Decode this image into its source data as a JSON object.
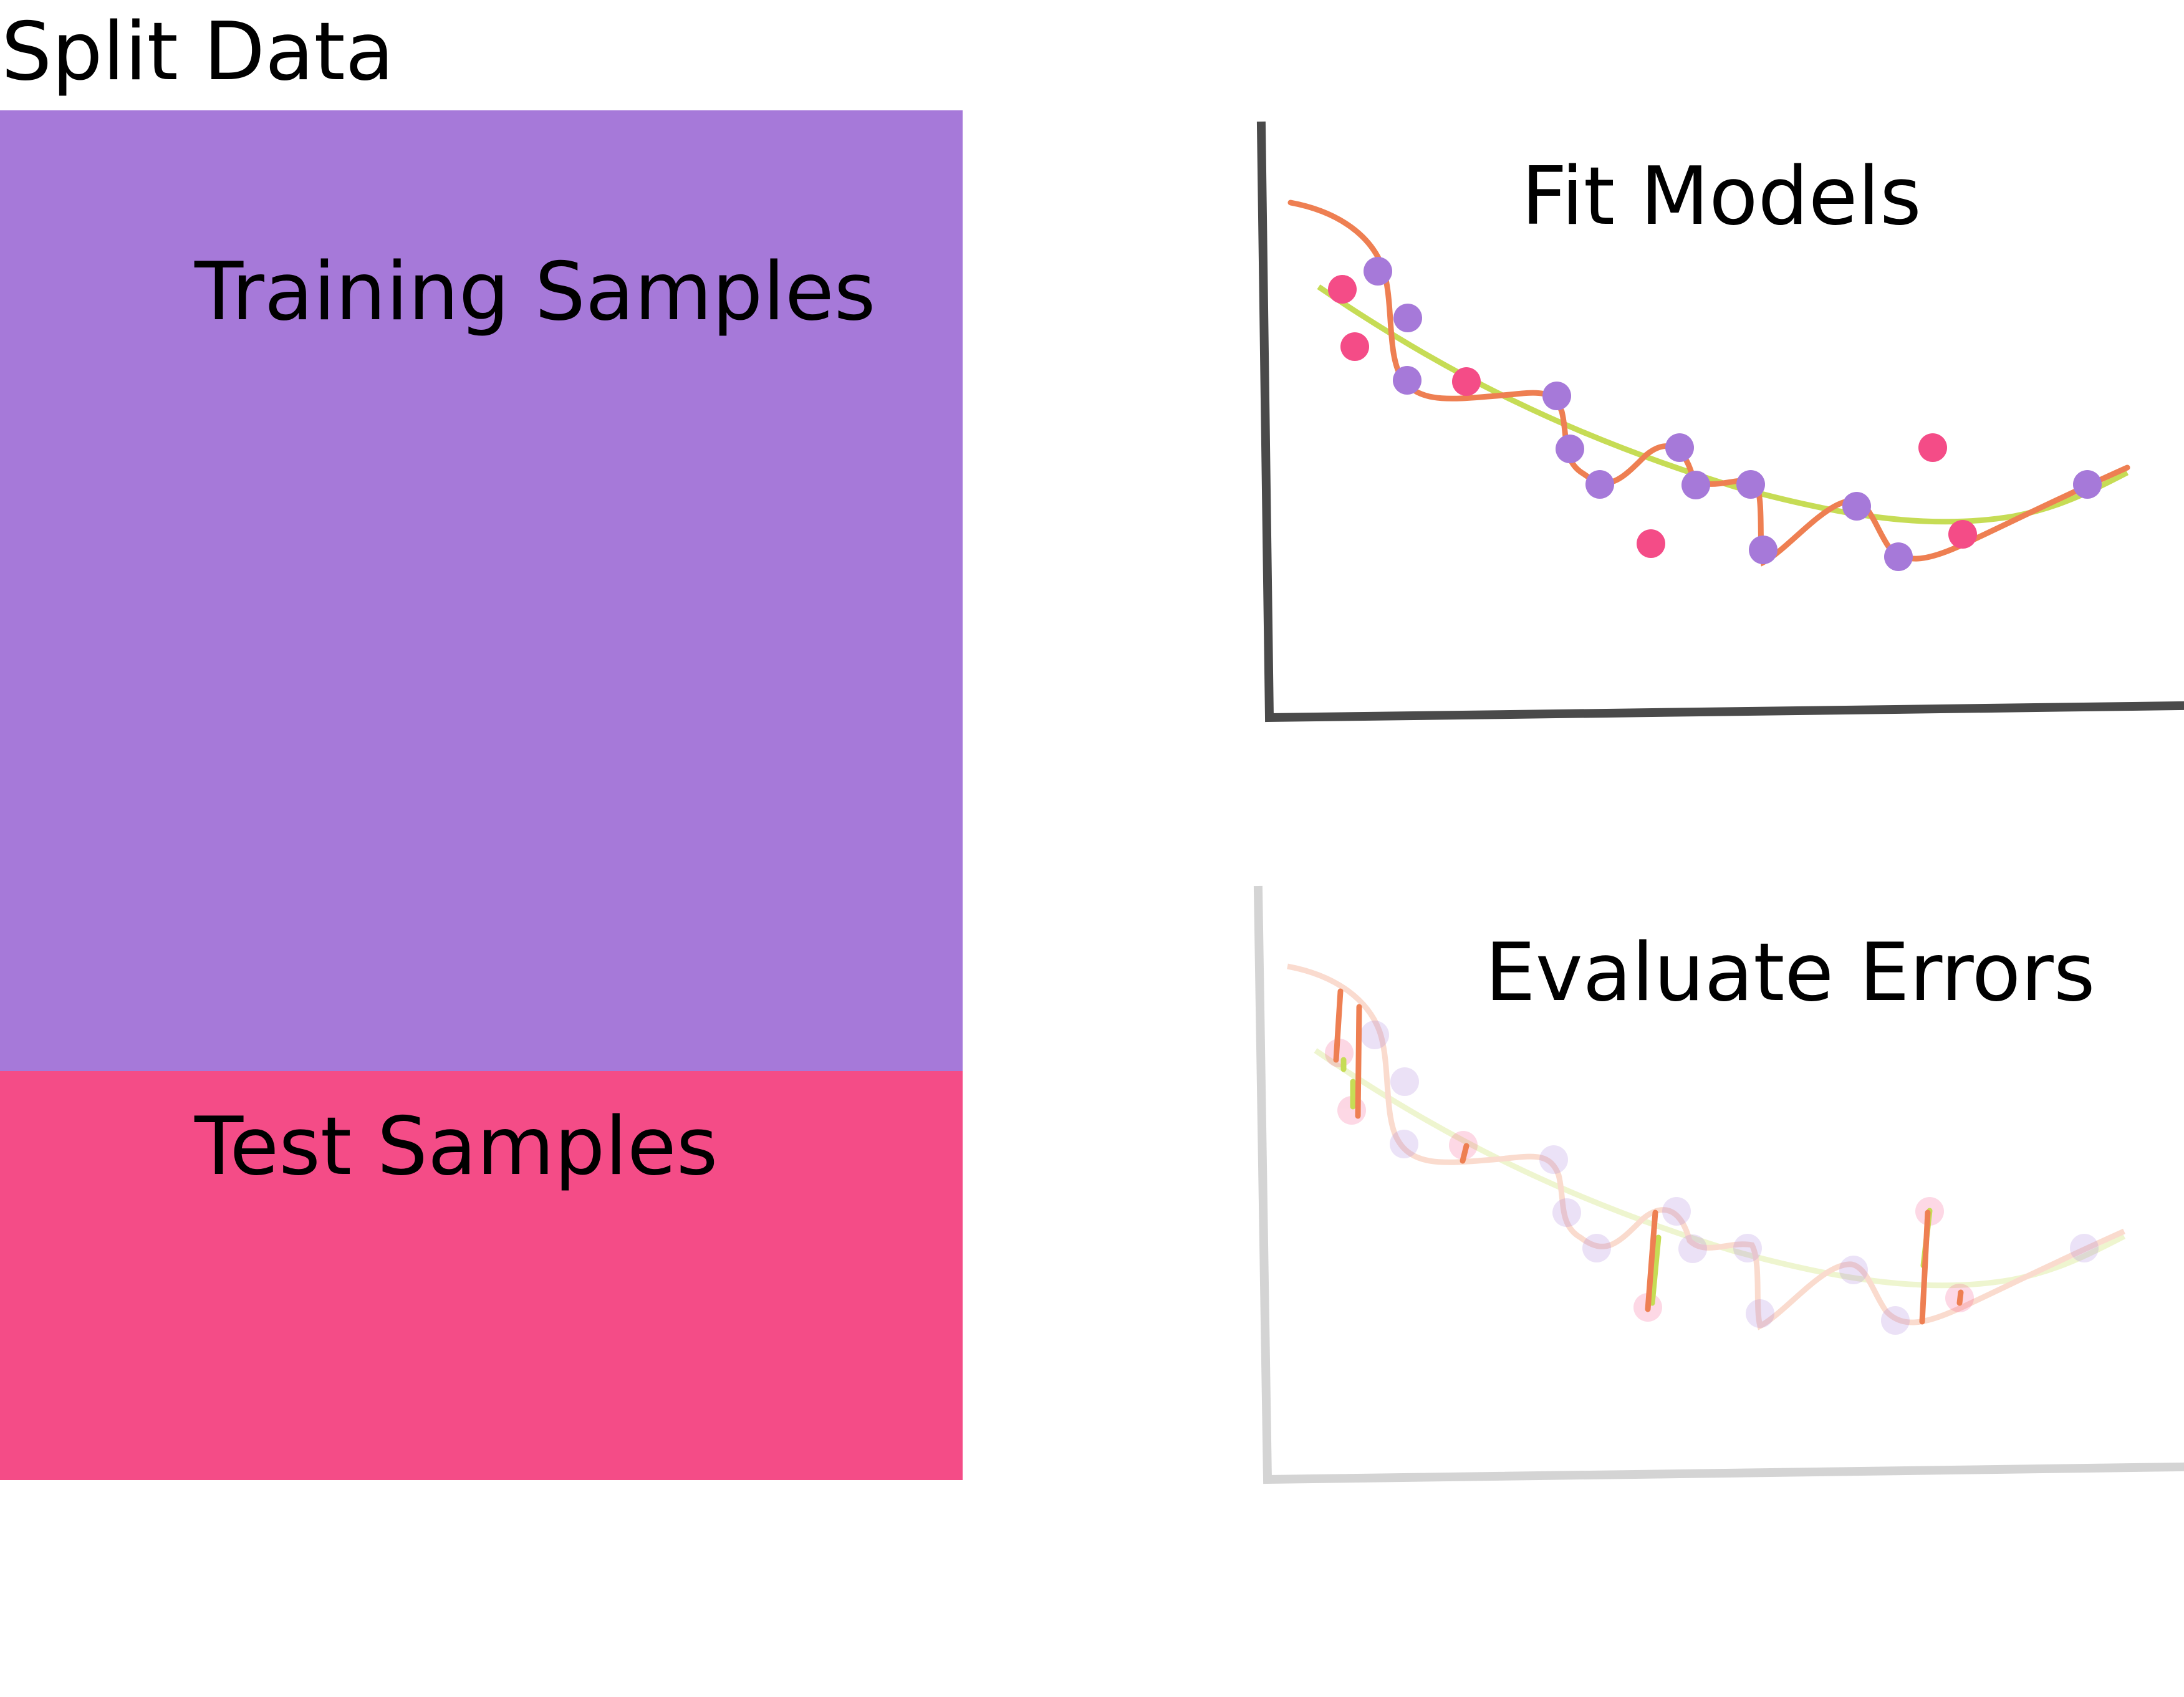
{
  "titles": {
    "split": "Split Data",
    "training": "Training Samples",
    "test": "Test Samples",
    "fit": "Fit Models",
    "evaluate": "Evaluate Errors"
  },
  "colors": {
    "training": "#a679d9",
    "test": "#f44c87",
    "overfit_curve": "#ee7f52",
    "smooth_curve": "#c6dc55",
    "axis_dark": "#4a4a4a",
    "axis_light": "#d4d4d4"
  }
}
